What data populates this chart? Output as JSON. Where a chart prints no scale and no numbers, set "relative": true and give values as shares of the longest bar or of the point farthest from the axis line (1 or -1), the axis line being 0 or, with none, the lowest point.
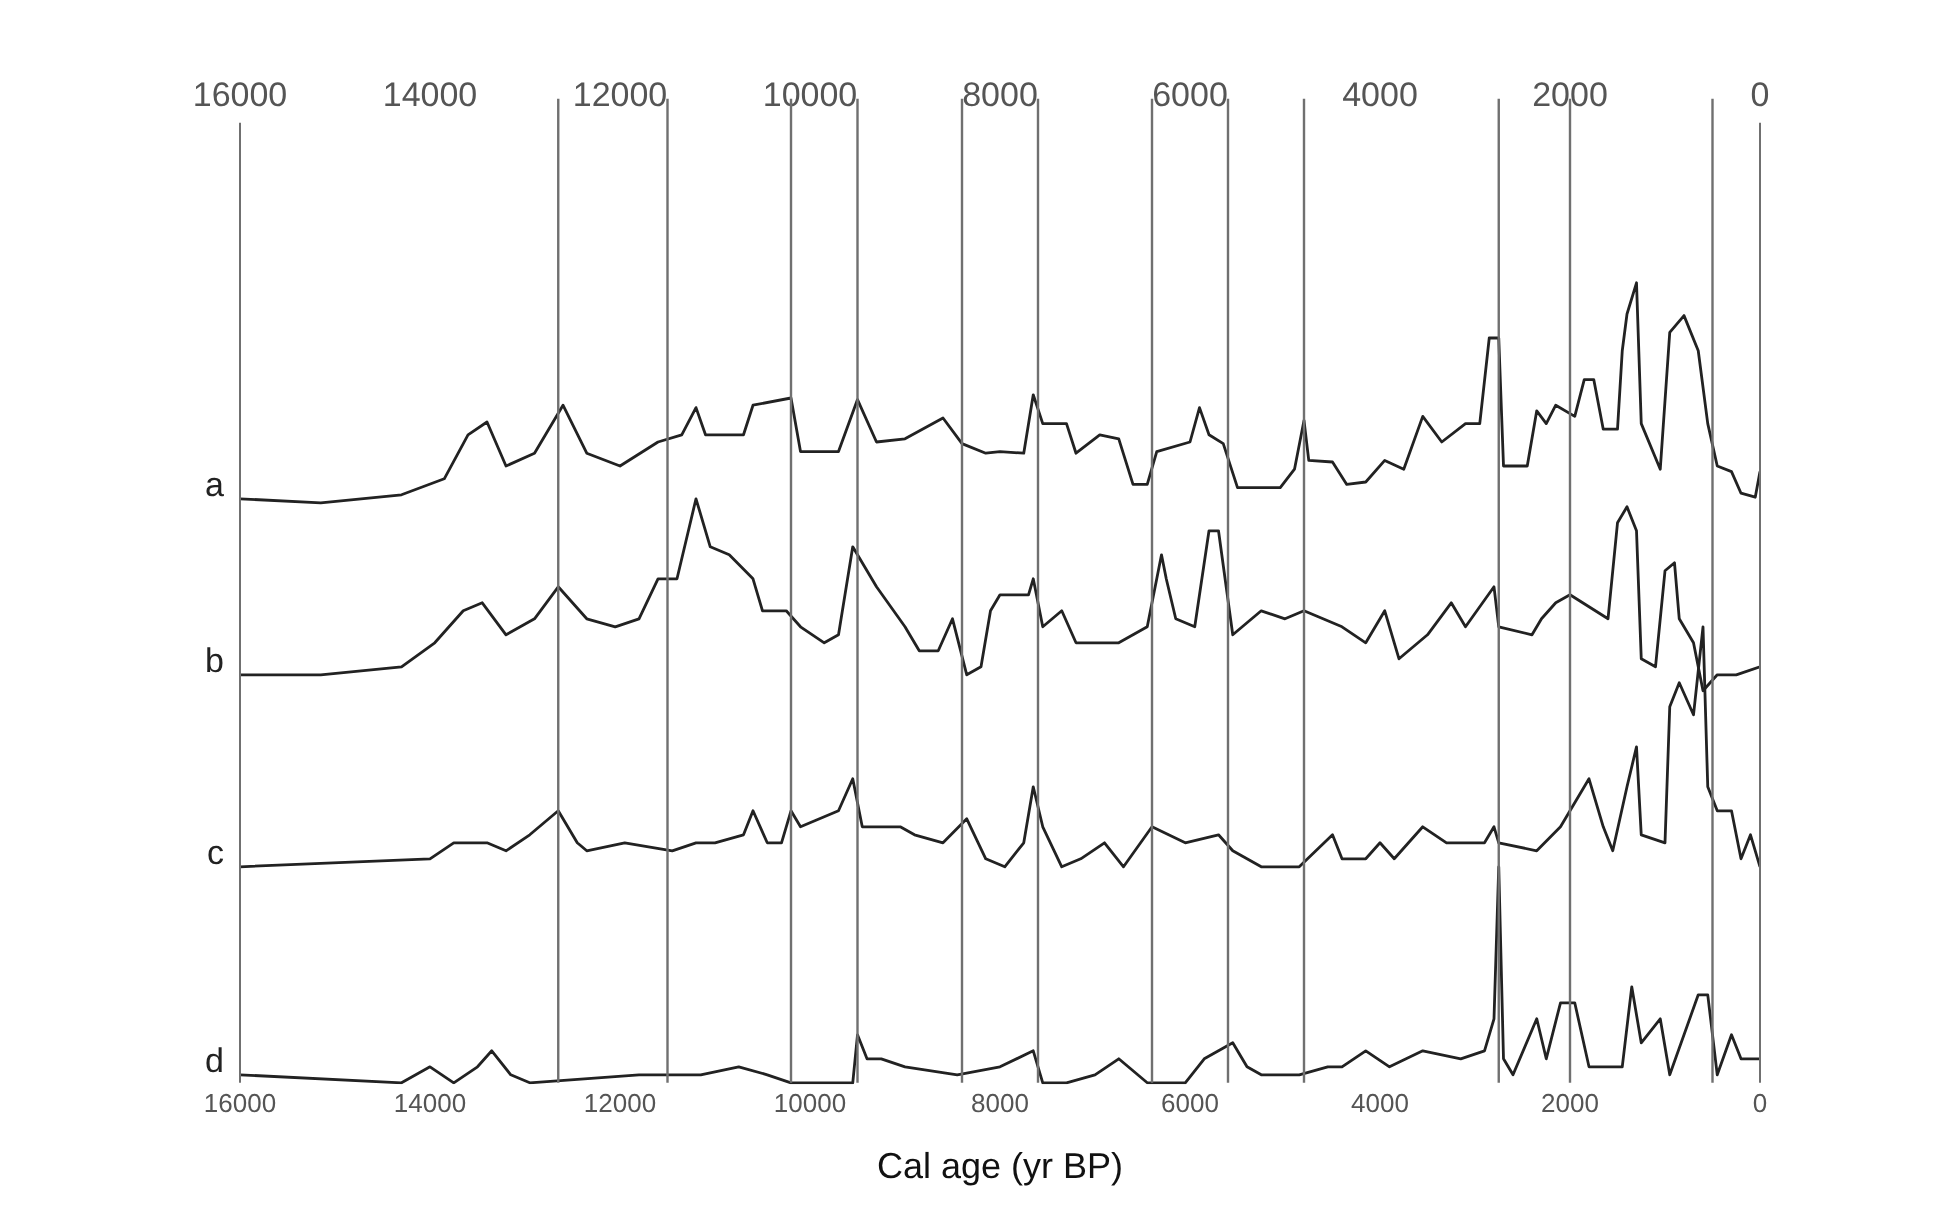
{
  "chart_data": {
    "type": "line",
    "xlabel": "Cal age (yr BP)",
    "relative": true,
    "grid": false,
    "legend": false,
    "marker": "none",
    "line_style": "solid",
    "xlim": [
      16000,
      0
    ],
    "xticks": [
      16000,
      14000,
      12000,
      10000,
      8000,
      6000,
      4000,
      2000,
      0
    ],
    "x2lim": [
      16000,
      0
    ],
    "x2ticks": [
      16000,
      14000,
      12000,
      10000,
      8000,
      6000,
      4000,
      2000,
      0
    ],
    "ref_lines": [
      {
        "axis": "x",
        "value": 12650,
        "color": "#707070"
      },
      {
        "axis": "x",
        "value": 11500,
        "color": "#707070"
      },
      {
        "axis": "x",
        "value": 10200,
        "color": "#707070"
      },
      {
        "axis": "x",
        "value": 9500,
        "color": "#707070"
      },
      {
        "axis": "x",
        "value": 8400,
        "color": "#707070"
      },
      {
        "axis": "x",
        "value": 7600,
        "color": "#707070"
      },
      {
        "axis": "x",
        "value": 6400,
        "color": "#707070"
      },
      {
        "axis": "x",
        "value": 5600,
        "color": "#707070"
      },
      {
        "axis": "x",
        "value": 4800,
        "color": "#707070"
      },
      {
        "axis": "x",
        "value": 2750,
        "color": "#707070"
      },
      {
        "axis": "x",
        "value": 2000,
        "color": "#707070"
      },
      {
        "axis": "x",
        "value": 500,
        "color": "#707070"
      }
    ],
    "series": [
      {
        "name": "a",
        "color": "#222222",
        "x": [
          16000,
          15150,
          14300,
          13850,
          13600,
          13400,
          13200,
          12900,
          12600,
          12350,
          12000,
          11600,
          11350,
          11200,
          11100,
          10700,
          10600,
          10200,
          10100,
          9700,
          9500,
          9300,
          9000,
          8600,
          8400,
          8150,
          8000,
          7750,
          7650,
          7550,
          7300,
          7200,
          6950,
          6750,
          6600,
          6450,
          6350,
          6000,
          5900,
          5800,
          5650,
          5500,
          5050,
          4900,
          4800,
          4750,
          4500,
          4350,
          4150,
          3950,
          3750,
          3550,
          3350,
          3100,
          2950,
          2850,
          2750,
          2700,
          2450,
          2350,
          2250,
          2150,
          1950,
          1850,
          1750,
          1650,
          1500,
          1450,
          1400,
          1300,
          1250,
          1050,
          950,
          800,
          650,
          550,
          450,
          300,
          200,
          50,
          0
        ],
        "values": [
          0.73,
          0.725,
          0.735,
          0.755,
          0.81,
          0.826,
          0.771,
          0.787,
          0.847,
          0.787,
          0.771,
          0.801,
          0.81,
          0.844,
          0.81,
          0.81,
          0.847,
          0.856,
          0.789,
          0.789,
          0.854,
          0.801,
          0.805,
          0.831,
          0.799,
          0.787,
          0.789,
          0.787,
          0.86,
          0.824,
          0.824,
          0.787,
          0.81,
          0.805,
          0.748,
          0.748,
          0.789,
          0.801,
          0.844,
          0.81,
          0.799,
          0.744,
          0.744,
          0.767,
          0.828,
          0.778,
          0.776,
          0.748,
          0.751,
          0.778,
          0.767,
          0.833,
          0.801,
          0.824,
          0.824,
          0.931,
          0.931,
          0.771,
          0.771,
          0.84,
          0.824,
          0.847,
          0.833,
          0.879,
          0.879,
          0.817,
          0.817,
          0.915,
          0.961,
          1,
          0.824,
          0.767,
          0.938,
          0.959,
          0.915,
          0.824,
          0.771,
          0.764,
          0.737,
          0.732,
          0.764
        ]
      },
      {
        "name": "b",
        "color": "#222222",
        "x": [
          16000,
          15150,
          14300,
          13950,
          13650,
          13450,
          13200,
          12900,
          12650,
          12350,
          12050,
          11800,
          11600,
          11400,
          11200,
          11050,
          10850,
          10600,
          10500,
          10250,
          10100,
          9850,
          9700,
          9550,
          9300,
          9000,
          8850,
          8650,
          8500,
          8350,
          8200,
          8100,
          8000,
          7700,
          7650,
          7550,
          7350,
          7200,
          6750,
          6450,
          6300,
          6250,
          6150,
          5950,
          5800,
          5700,
          5550,
          5250,
          5000,
          4800,
          4400,
          4150,
          3950,
          3800,
          3500,
          3250,
          3100,
          2800,
          2750,
          2400,
          2300,
          2150,
          2000,
          1600,
          1500,
          1400,
          1300,
          1250,
          1100,
          1000,
          900,
          850,
          700,
          600,
          450,
          250,
          0
        ],
        "values": [
          0.51,
          0.51,
          0.52,
          0.55,
          0.59,
          0.6,
          0.56,
          0.58,
          0.62,
          0.58,
          0.57,
          0.58,
          0.63,
          0.63,
          0.73,
          0.67,
          0.66,
          0.63,
          0.59,
          0.59,
          0.57,
          0.55,
          0.56,
          0.67,
          0.62,
          0.57,
          0.54,
          0.54,
          0.58,
          0.51,
          0.52,
          0.59,
          0.61,
          0.61,
          0.63,
          0.57,
          0.59,
          0.55,
          0.55,
          0.57,
          0.66,
          0.63,
          0.58,
          0.57,
          0.69,
          0.69,
          0.56,
          0.59,
          0.58,
          0.59,
          0.57,
          0.55,
          0.59,
          0.53,
          0.56,
          0.6,
          0.57,
          0.62,
          0.57,
          0.56,
          0.58,
          0.6,
          0.61,
          0.58,
          0.7,
          0.72,
          0.69,
          0.53,
          0.52,
          0.64,
          0.65,
          0.58,
          0.55,
          0.49,
          0.51,
          0.51,
          0.52
        ]
      },
      {
        "name": "c",
        "color": "#222222",
        "x": [
          16000,
          14000,
          13750,
          13400,
          13200,
          12950,
          12650,
          12450,
          12350,
          11950,
          11450,
          11200,
          11000,
          10700,
          10600,
          10450,
          10300,
          10200,
          10100,
          9700,
          9550,
          9450,
          9050,
          8900,
          8600,
          8350,
          8150,
          7950,
          7750,
          7650,
          7550,
          7350,
          7150,
          6900,
          6700,
          6400,
          6050,
          5700,
          5550,
          5250,
          4850,
          4500,
          4400,
          4150,
          4000,
          3850,
          3550,
          3300,
          2900,
          2800,
          2750,
          2350,
          2100,
          1800,
          1650,
          1550,
          1400,
          1300,
          1250,
          1000,
          950,
          850,
          700,
          600,
          550,
          450,
          300,
          200,
          100,
          0
        ],
        "values": [
          0.27,
          0.28,
          0.3,
          0.3,
          0.29,
          0.31,
          0.34,
          0.3,
          0.29,
          0.3,
          0.29,
          0.3,
          0.3,
          0.31,
          0.34,
          0.3,
          0.3,
          0.34,
          0.32,
          0.34,
          0.38,
          0.32,
          0.32,
          0.31,
          0.3,
          0.33,
          0.28,
          0.27,
          0.3,
          0.37,
          0.32,
          0.27,
          0.28,
          0.3,
          0.27,
          0.32,
          0.3,
          0.31,
          0.29,
          0.27,
          0.27,
          0.31,
          0.28,
          0.28,
          0.3,
          0.28,
          0.32,
          0.3,
          0.3,
          0.32,
          0.3,
          0.29,
          0.32,
          0.38,
          0.32,
          0.29,
          0.37,
          0.42,
          0.31,
          0.3,
          0.47,
          0.5,
          0.46,
          0.57,
          0.37,
          0.34,
          0.34,
          0.28,
          0.31,
          0.27
        ]
      },
      {
        "name": "d",
        "color": "#222222",
        "x": [
          16000,
          14300,
          14000,
          13750,
          13500,
          13350,
          13150,
          12950,
          11800,
          11450,
          11150,
          10750,
          10450,
          10200,
          9550,
          9500,
          9400,
          9250,
          9000,
          8450,
          8000,
          7650,
          7550,
          7300,
          7000,
          6750,
          6450,
          6050,
          5850,
          5550,
          5400,
          5250,
          4850,
          4550,
          4400,
          4150,
          3900,
          3550,
          3150,
          2900,
          2800,
          2750,
          2700,
          2600,
          2350,
          2250,
          2100,
          1950,
          1800,
          1450,
          1350,
          1250,
          1050,
          950,
          650,
          550,
          450,
          300,
          200,
          0
        ],
        "values": [
          0.01,
          0,
          0.02,
          0,
          0.02,
          0.04,
          0.01,
          0,
          0.01,
          0.01,
          0.01,
          0.02,
          0.01,
          0,
          0,
          0.06,
          0.03,
          0.03,
          0.02,
          0.01,
          0.02,
          0.04,
          0,
          0,
          0.01,
          0.03,
          0,
          0,
          0.03,
          0.05,
          0.02,
          0.01,
          0.01,
          0.02,
          0.02,
          0.04,
          0.02,
          0.04,
          0.03,
          0.04,
          0.08,
          0.27,
          0.03,
          0.01,
          0.08,
          0.03,
          0.1,
          0.1,
          0.02,
          0.02,
          0.12,
          0.05,
          0.08,
          0.01,
          0.11,
          0.11,
          0.01,
          0.06,
          0.03,
          0.03
        ]
      }
    ]
  }
}
